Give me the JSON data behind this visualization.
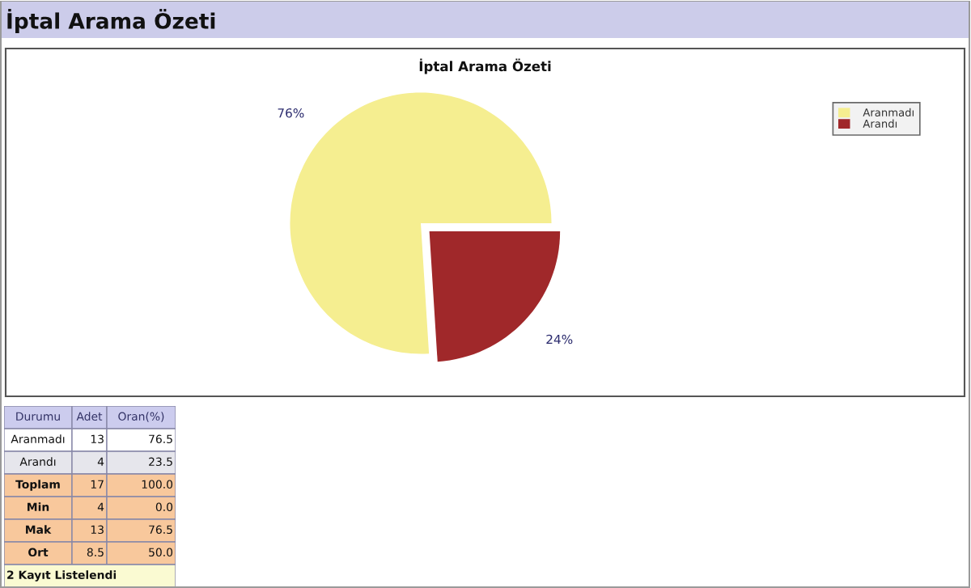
{
  "chart_data": {
    "type": "pie",
    "title": "İptal Arama Özeti",
    "subtitle": "İptal Arama Özeti",
    "categories": [
      "Aranmadı",
      "Arandı"
    ],
    "values": [
      76,
      24
    ],
    "colors": [
      "#f5ee90",
      "#a0282a"
    ],
    "value_labels": [
      "76%",
      "24%"
    ],
    "legend": "top right",
    "annotations": [
      "Durumu",
      "Adet",
      "Oran(%)",
      "Aranmadı",
      "13",
      "76.5",
      "Arandı",
      "4",
      "23.5",
      "Toplam",
      "17",
      "100.0",
      "Min",
      "4",
      "0.0",
      "Mak",
      "13",
      "76.5",
      "Ort",
      "8.5",
      "50.0",
      "2 Kayıt Listelendi"
    ]
  }
}
